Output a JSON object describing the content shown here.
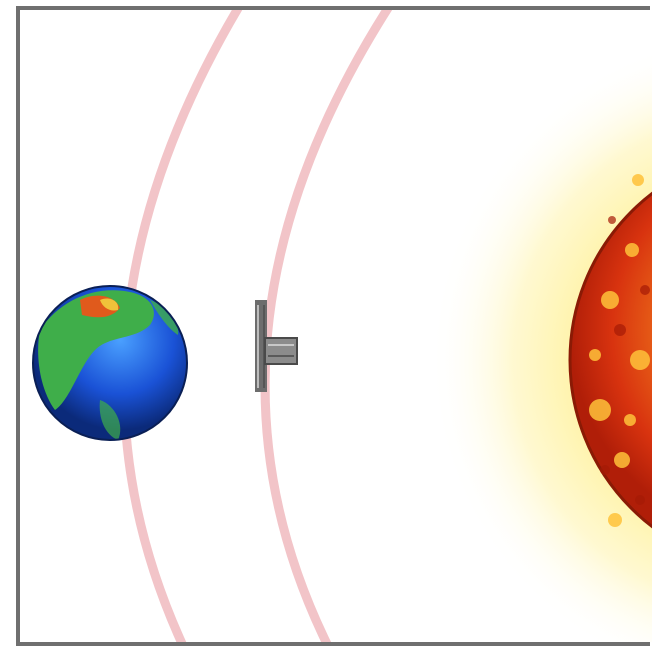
{
  "diagram": {
    "bodies": [
      {
        "id": "earth",
        "icon": "earth-icon"
      },
      {
        "id": "spacecraft",
        "icon": "satellite-icon"
      },
      {
        "id": "sun",
        "icon": "sun-icon"
      }
    ],
    "orbit_paths": 2,
    "colors": {
      "orbit": "#f2c4c8",
      "frame": "#6f6f6f",
      "sun_core": "#d83a12",
      "sun_glow": "#fff7c2",
      "earth_ocean": "#1a4fd0",
      "earth_land": "#3fae4a"
    }
  }
}
